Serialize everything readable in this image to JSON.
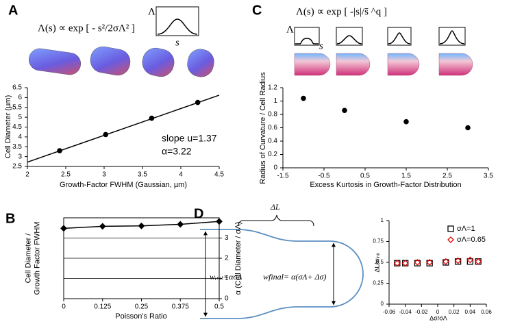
{
  "panel_labels": [
    "A",
    "B",
    "C",
    "D"
  ],
  "panel_a": {
    "formula": "Λ(s) ∝ exp [ - s²/2σΛ² ]",
    "inset_y_label": "Λ",
    "inset_x_label": "s"
  },
  "panel_c": {
    "formula": "Λ(s) ∝ exp [ -|s|/s̄ ^q ]",
    "inset_y_label": "Λ",
    "inset_x_label": "s"
  },
  "panel_d_diagram": {
    "delta_L": "ΔL",
    "w_init": "wᵢₙᵢₜ=ασΛ",
    "w_final": "wfinal= α(σΛ+ Δσ)"
  },
  "chart_data": [
    {
      "type": "scatter",
      "xlabel": "Growth-Factor FWHM (Gaussian, µm)",
      "ylabel": "Cell Diameter (µm)",
      "xlim": [
        2,
        4.5
      ],
      "xticks": [
        2,
        2.5,
        3,
        3.5,
        4,
        4.5
      ],
      "ylim": [
        2.5,
        6.5
      ],
      "yticks": [
        2.5,
        3,
        3.5,
        4,
        4.5,
        5,
        5.5,
        6,
        6.5
      ],
      "annotations": [
        "slope u=1.37",
        "α=3.22"
      ],
      "series": [
        {
          "color": "#000000",
          "line": true,
          "x": [
            2,
            4.5
          ],
          "values": [
            2.72,
            6.12
          ]
        },
        {
          "color": "#000000",
          "marker": "circle",
          "x": [
            2.42,
            3.02,
            3.62,
            4.22
          ],
          "values": [
            3.3,
            4.12,
            4.95,
            5.75
          ]
        }
      ]
    },
    {
      "type": "line",
      "xlabel": "Poisson's Ratio",
      "ylabel": [
        "Cell Diameter /",
        "Growth Factor FWHM"
      ],
      "y2label": "α (Cell Diameter / σΛ)",
      "xlim": [
        0,
        0.5
      ],
      "xticks": [
        0,
        0.125,
        0.25,
        0.375,
        0.5
      ],
      "y2lim": [
        0,
        4
      ],
      "y2ticks": [
        0,
        1,
        2,
        3
      ],
      "grid": true,
      "frame": true,
      "series": [
        {
          "color": "#000000",
          "line": true,
          "marker": "diamond",
          "axis": "y2",
          "x": [
            0,
            0.125,
            0.25,
            0.375,
            0.5
          ],
          "values": [
            3.48,
            3.58,
            3.6,
            3.68,
            3.82
          ]
        }
      ]
    },
    {
      "type": "scatter",
      "xlabel": "Excess Kurtosis in Growth-Factor Distribution",
      "ylabel": "Radius of Curvature / Cell Radius",
      "xlim": [
        -1.5,
        3.5
      ],
      "xticks": [
        -1.5,
        -0.5,
        0.5,
        1.5,
        2.5,
        3.5
      ],
      "ylim": [
        0,
        1.2
      ],
      "yticks": [
        0,
        0.2,
        0.4,
        0.6,
        0.8,
        1,
        1.2
      ],
      "series": [
        {
          "color": "#000000",
          "marker": "circle",
          "x": [
            -1,
            0,
            1.5,
            3
          ],
          "values": [
            1.04,
            0.86,
            0.69,
            0.6
          ]
        }
      ]
    },
    {
      "type": "scatter",
      "xlabel": "Δσ/σΛ",
      "ylabel": "ΔL/wᵢₙᵢₜ",
      "legend": "top-right",
      "xlim": [
        -0.06,
        0.06
      ],
      "xticks": [
        -0.06,
        -0.04,
        -0.02,
        0,
        0.02,
        0.04,
        0.06
      ],
      "ylim": [
        0,
        1
      ],
      "yticks": [
        0,
        0.25,
        0.5,
        0.75,
        1
      ],
      "x": [
        -0.05,
        -0.04,
        -0.025,
        -0.01,
        0.01,
        0.025,
        0.04,
        0.05
      ],
      "series": [
        {
          "name": "σΛ=1",
          "color": "#000000",
          "marker": "open-square",
          "values": [
            0.49,
            0.49,
            0.49,
            0.49,
            0.5,
            0.51,
            0.51,
            0.51
          ]
        },
        {
          "name": "σΛ=0.65",
          "color": "#e00000",
          "marker": "open-diamond",
          "values": [
            0.49,
            0.49,
            0.5,
            0.5,
            0.51,
            0.52,
            0.53,
            0.51
          ]
        }
      ]
    }
  ]
}
